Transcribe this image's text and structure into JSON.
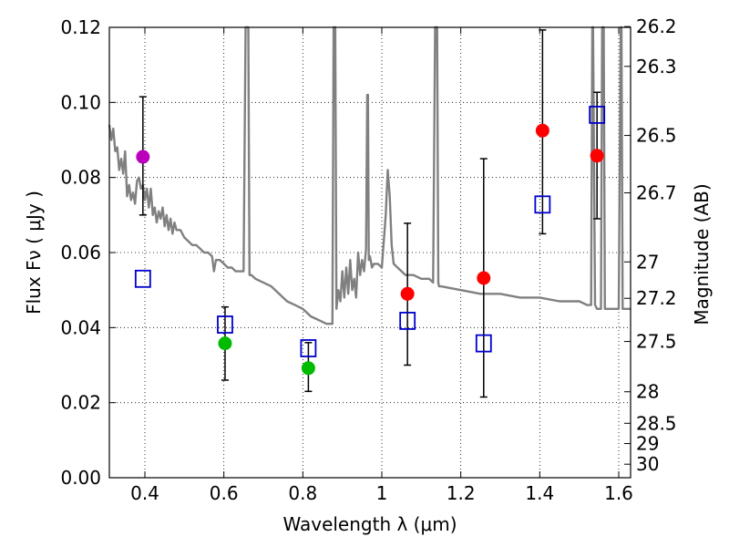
{
  "chart_data": {
    "type": "scatter",
    "title": "",
    "xlabel": "Wavelength  λ (μm)",
    "ylabel": "Flux  Fν  ( μJy )",
    "ylabel_right": "Magnitude (AB)",
    "xlim": [
      0.31,
      1.63
    ],
    "ylim": [
      0.0,
      0.12
    ],
    "grid": true,
    "x_ticks": [
      0.4,
      0.6,
      0.8,
      1.0,
      1.2,
      1.4,
      1.6
    ],
    "x_tick_labels": [
      "0.4",
      "0.6",
      "0.8",
      "1",
      "1.2",
      "1.4",
      "1.6"
    ],
    "y_ticks": [
      0.0,
      0.02,
      0.04,
      0.06,
      0.08,
      0.1,
      0.12
    ],
    "y_tick_labels": [
      "0.00",
      "0.02",
      "0.04",
      "0.06",
      "0.08",
      "0.10",
      "0.12"
    ],
    "right_ticks": [
      {
        "flux": 0.1202,
        "label": "26.2"
      },
      {
        "flux": 0.1096,
        "label": "26.3"
      },
      {
        "flux": 0.0912,
        "label": "26.5"
      },
      {
        "flux": 0.0759,
        "label": "26.7"
      },
      {
        "flux": 0.0575,
        "label": "27"
      },
      {
        "flux": 0.0478,
        "label": "27.2"
      },
      {
        "flux": 0.0363,
        "label": "27.5"
      },
      {
        "flux": 0.0229,
        "label": "28"
      },
      {
        "flux": 0.0145,
        "label": "28.5"
      },
      {
        "flux": 0.0091,
        "label": "29"
      },
      {
        "flux": 0.0036,
        "label": "30"
      }
    ],
    "colors": {
      "sed": "#808080",
      "blue": "#0000cc",
      "red": "#ff0000",
      "green": "#00bb00",
      "magenta": "#bb00bb",
      "error": "#000000"
    },
    "observed": [
      {
        "x": 0.395,
        "y": 0.0855,
        "err_low": 0.07,
        "err_high": 0.1015,
        "color": "magenta"
      },
      {
        "x": 0.603,
        "y": 0.0358,
        "err_low": 0.026,
        "err_high": 0.0455,
        "color": "green"
      },
      {
        "x": 0.814,
        "y": 0.0292,
        "err_low": 0.023,
        "err_high": 0.036,
        "color": "green"
      },
      {
        "x": 1.065,
        "y": 0.049,
        "err_low": 0.03,
        "err_high": 0.0678,
        "color": "red"
      },
      {
        "x": 1.258,
        "y": 0.0532,
        "err_low": 0.0215,
        "err_high": 0.085,
        "color": "red"
      },
      {
        "x": 1.407,
        "y": 0.0925,
        "err_low": 0.065,
        "err_high": 0.1193,
        "color": "red"
      },
      {
        "x": 1.545,
        "y": 0.0858,
        "err_low": 0.069,
        "err_high": 0.1027,
        "color": "red"
      }
    ],
    "model_points": [
      {
        "x": 0.395,
        "y": 0.053
      },
      {
        "x": 0.603,
        "y": 0.0408
      },
      {
        "x": 0.814,
        "y": 0.0345
      },
      {
        "x": 1.065,
        "y": 0.0418
      },
      {
        "x": 1.258,
        "y": 0.0358
      },
      {
        "x": 1.407,
        "y": 0.0728
      },
      {
        "x": 1.545,
        "y": 0.0967
      }
    ],
    "sed_curve": {
      "x": [
        0.31,
        0.315,
        0.32,
        0.325,
        0.33,
        0.335,
        0.34,
        0.345,
        0.35,
        0.355,
        0.36,
        0.365,
        0.37,
        0.375,
        0.38,
        0.385,
        0.39,
        0.395,
        0.4,
        0.405,
        0.41,
        0.415,
        0.42,
        0.425,
        0.43,
        0.435,
        0.44,
        0.445,
        0.45,
        0.455,
        0.46,
        0.465,
        0.47,
        0.475,
        0.48,
        0.49,
        0.5,
        0.51,
        0.52,
        0.53,
        0.54,
        0.55,
        0.56,
        0.57,
        0.575,
        0.58,
        0.59,
        0.6,
        0.61,
        0.62,
        0.63,
        0.64,
        0.65,
        0.655,
        0.658,
        0.66,
        0.662,
        0.665,
        0.67,
        0.68,
        0.7,
        0.72,
        0.74,
        0.76,
        0.78,
        0.8,
        0.82,
        0.84,
        0.86,
        0.875,
        0.878,
        0.88,
        0.882,
        0.885,
        0.89,
        0.895,
        0.9,
        0.905,
        0.91,
        0.915,
        0.92,
        0.925,
        0.93,
        0.935,
        0.94,
        0.945,
        0.95,
        0.955,
        0.96,
        0.963,
        0.965,
        0.967,
        0.97,
        0.975,
        0.98,
        0.99,
        1.0,
        1.01,
        1.015,
        1.02,
        1.025,
        1.03,
        1.04,
        1.05,
        1.06,
        1.07,
        1.08,
        1.1,
        1.12,
        1.13,
        1.135,
        1.137,
        1.14,
        1.143,
        1.145,
        1.15,
        1.2,
        1.25,
        1.3,
        1.35,
        1.4,
        1.45,
        1.5,
        1.52,
        1.53,
        1.533,
        1.535,
        1.54,
        1.545,
        1.55,
        1.555,
        1.558,
        1.56,
        1.562,
        1.565,
        1.57,
        1.58,
        1.59,
        1.6,
        1.605,
        1.607,
        1.61,
        1.62,
        1.63
      ],
      "y": [
        0.094,
        0.09,
        0.093,
        0.087,
        0.088,
        0.082,
        0.085,
        0.081,
        0.087,
        0.075,
        0.078,
        0.074,
        0.076,
        0.073,
        0.079,
        0.08,
        0.077,
        0.078,
        0.074,
        0.077,
        0.072,
        0.077,
        0.07,
        0.072,
        0.068,
        0.071,
        0.069,
        0.072,
        0.067,
        0.07,
        0.066,
        0.069,
        0.065,
        0.068,
        0.066,
        0.066,
        0.064,
        0.063,
        0.062,
        0.062,
        0.061,
        0.06,
        0.06,
        0.059,
        0.055,
        0.058,
        0.058,
        0.057,
        0.056,
        0.056,
        0.055,
        0.055,
        0.055,
        0.12,
        0.12,
        0.12,
        0.12,
        0.054,
        0.054,
        0.053,
        0.052,
        0.051,
        0.049,
        0.047,
        0.046,
        0.045,
        0.043,
        0.042,
        0.041,
        0.041,
        0.12,
        0.12,
        0.12,
        0.045,
        0.05,
        0.047,
        0.055,
        0.048,
        0.056,
        0.049,
        0.058,
        0.05,
        0.053,
        0.048,
        0.06,
        0.054,
        0.058,
        0.055,
        0.061,
        0.102,
        0.102,
        0.058,
        0.059,
        0.056,
        0.057,
        0.057,
        0.056,
        0.07,
        0.082,
        0.075,
        0.062,
        0.057,
        0.056,
        0.055,
        0.054,
        0.054,
        0.054,
        0.053,
        0.053,
        0.052,
        0.12,
        0.12,
        0.12,
        0.052,
        0.051,
        0.051,
        0.05,
        0.049,
        0.049,
        0.048,
        0.048,
        0.047,
        0.047,
        0.046,
        0.046,
        0.12,
        0.12,
        0.046,
        0.045,
        0.045,
        0.045,
        0.12,
        0.12,
        0.12,
        0.045,
        0.045,
        0.045,
        0.045,
        0.045,
        0.12,
        0.12,
        0.045,
        0.045,
        0.045
      ]
    }
  }
}
